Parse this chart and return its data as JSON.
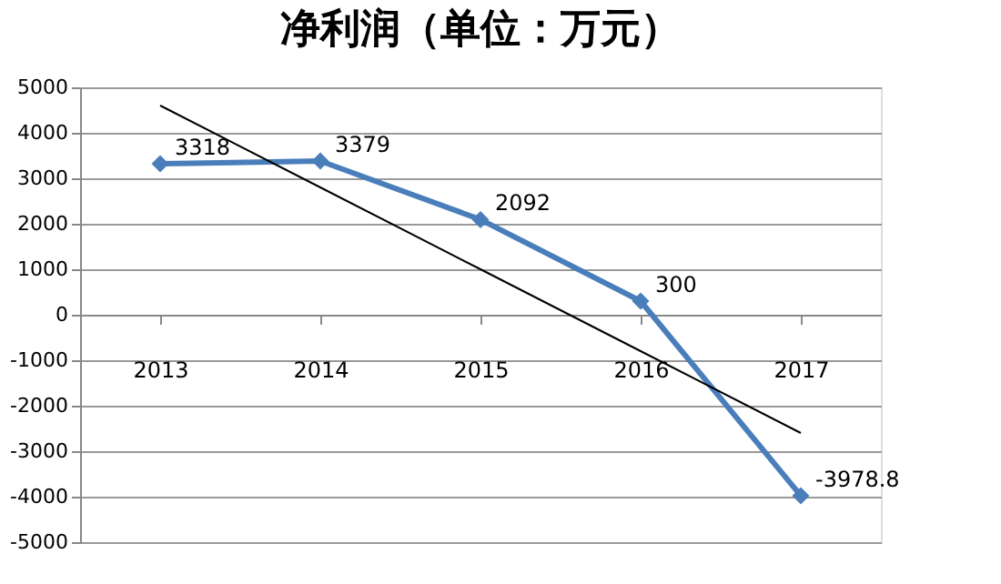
{
  "chart_data": {
    "type": "line",
    "title": "净利润（单位：万元）",
    "categories": [
      "2013",
      "2014",
      "2015",
      "2016",
      "2017"
    ],
    "series": [
      {
        "color": "#4a7ebb",
        "values": [
          3318,
          3379,
          2092,
          300,
          -3978.8
        ],
        "marker": "diamond",
        "data_labels": true
      },
      {
        "type": "line",
        "color": "#000000",
        "values": [
          4600,
          2800,
          1000,
          -800,
          -2600
        ],
        "marker": "none"
      }
    ],
    "ylim": [
      -5000,
      5000
    ],
    "yticks": [
      -5000,
      -4000,
      -3000,
      -2000,
      -1000,
      0,
      1000,
      2000,
      3000,
      4000,
      5000
    ],
    "grid": "y"
  }
}
